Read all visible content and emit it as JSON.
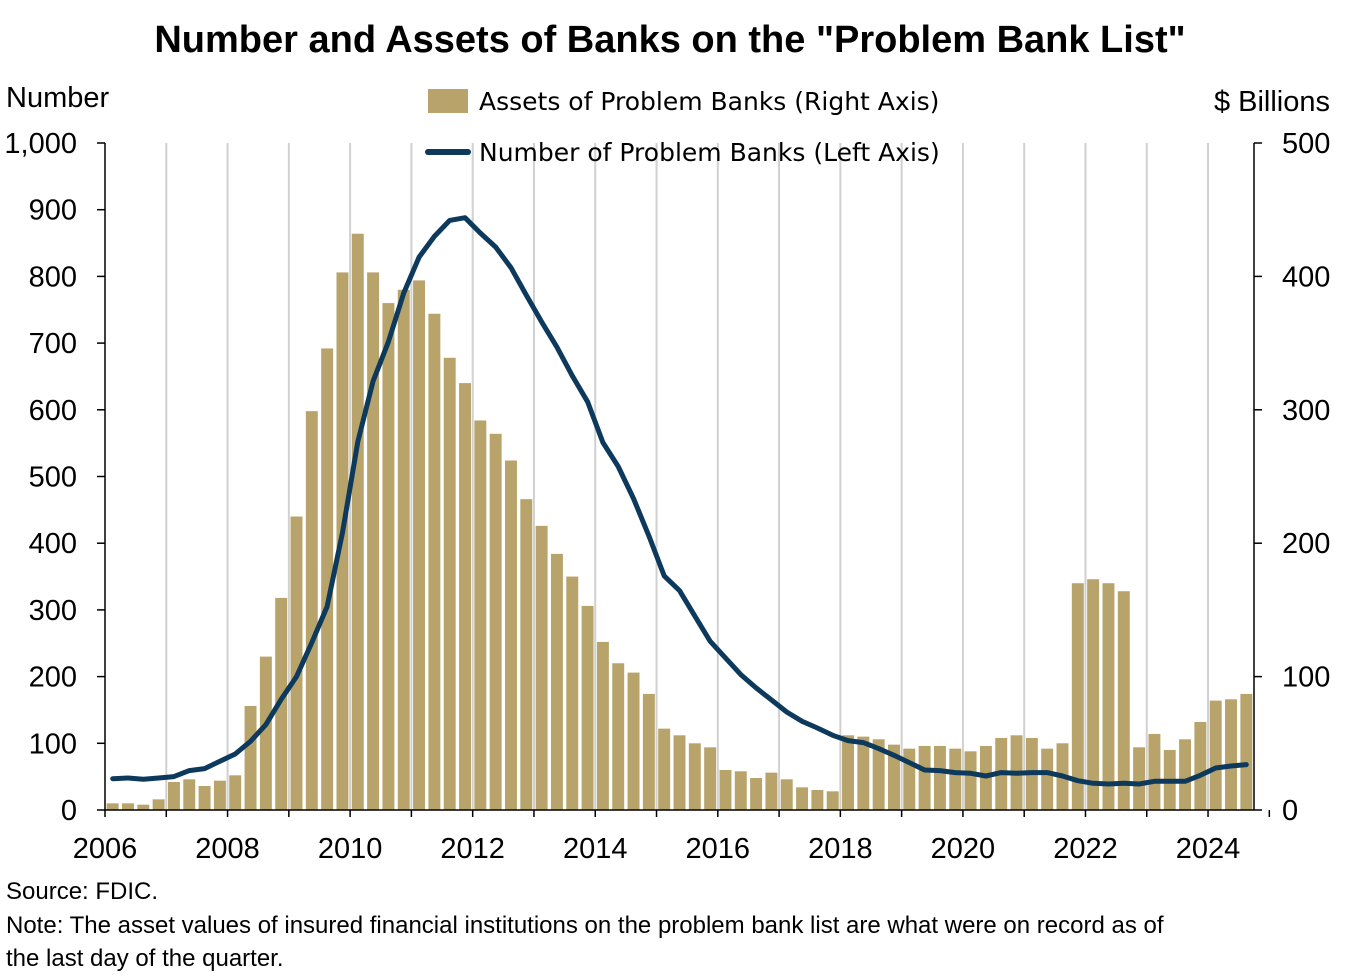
{
  "chart_data": {
    "type": "bar",
    "title": "Number and Assets of Banks on the \"Problem Bank List\"",
    "left_axis_label": "Number",
    "right_axis_label": "$ Billions",
    "left_ylim": [
      0,
      1000
    ],
    "right_ylim": [
      0,
      500
    ],
    "left_ticks": [
      "0",
      "100",
      "200",
      "300",
      "400",
      "500",
      "600",
      "700",
      "800",
      "900",
      "1,000"
    ],
    "right_ticks": [
      "0",
      "100",
      "200",
      "300",
      "400",
      "500"
    ],
    "x_ticks": [
      "2006",
      "2008",
      "2010",
      "2012",
      "2014",
      "2016",
      "2018",
      "2020",
      "2022",
      "2024"
    ],
    "x_range": [
      "2006 Q1",
      "2024 Q4"
    ],
    "grid": "vertical lines at each year",
    "legend_position": "top-center",
    "bar_color": "#B8A46B",
    "line_color": "#0D3A5C",
    "series": [
      {
        "name": "Assets of Problem Banks (Right Axis)",
        "type": "bar",
        "axis": "right",
        "quarters_start": "2006 Q1",
        "values": [
          5,
          5,
          4,
          8,
          21,
          23,
          18,
          22,
          26,
          78,
          115,
          159,
          220,
          299,
          346,
          403,
          432,
          403,
          380,
          390,
          397,
          372,
          339,
          320,
          292,
          282,
          262,
          233,
          213,
          192,
          175,
          153,
          126,
          110,
          103,
          87,
          61,
          56,
          50,
          47,
          30,
          29,
          24,
          28,
          23,
          17,
          15,
          14,
          56,
          55,
          53,
          49,
          46,
          48,
          48,
          46,
          44,
          48,
          54,
          56,
          54,
          46,
          50,
          170,
          173,
          170,
          164,
          47,
          57,
          45,
          53,
          66,
          82,
          83,
          87
        ]
      },
      {
        "name": "Number of Problem Banks (Left Axis)",
        "type": "line",
        "axis": "left",
        "quarters_start": "2006 Q1",
        "values": [
          47,
          48,
          46,
          48,
          50,
          59,
          62,
          73,
          84,
          103,
          128,
          166,
          200,
          251,
          305,
          416,
          552,
          643,
          702,
          775,
          829,
          860,
          884,
          888,
          865,
          844,
          813,
          772,
          732,
          694,
          651,
          612,
          551,
          515,
          467,
          411,
          351,
          329,
          291,
          253,
          228,
          203,
          183,
          165,
          147,
          133,
          123,
          112,
          104,
          101,
          92,
          82,
          71,
          60,
          59,
          56,
          55,
          51,
          56,
          55,
          56,
          56,
          51,
          44,
          40,
          39,
          40,
          39,
          43,
          43,
          43,
          52,
          63,
          66,
          68
        ]
      }
    ],
    "source": "Source: FDIC.",
    "note_line1": "Note: The asset values of insured financial institutions on the problem bank list are what were on record as of",
    "note_line2": "the last day of the quarter."
  }
}
